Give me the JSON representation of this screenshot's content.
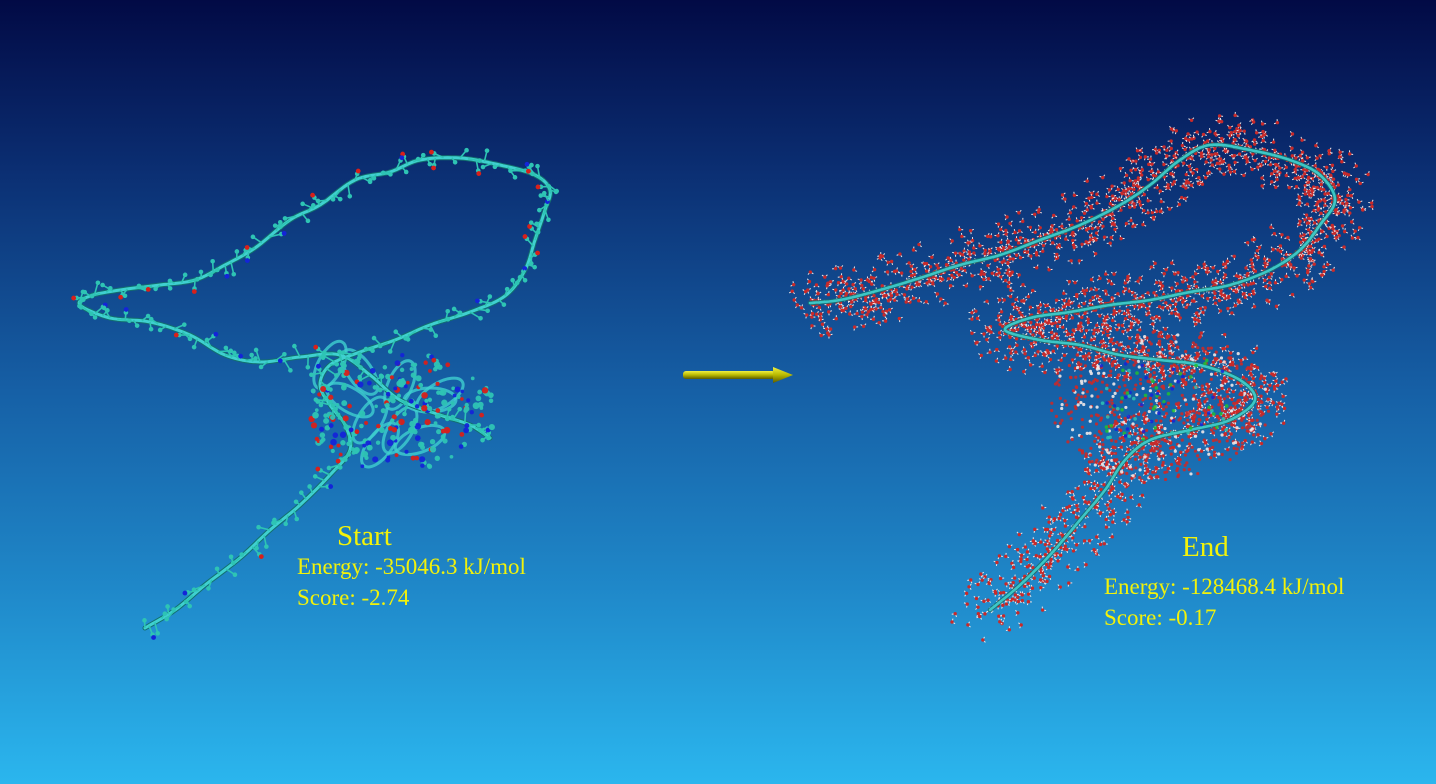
{
  "start": {
    "title": "Start",
    "energy": "Energy: -35046.3 kJ/mol",
    "score": "Score: -2.74"
  },
  "end": {
    "title": "End",
    "energy": "Energy: -128468.4 kJ/mol",
    "score": "Score: -0.17"
  },
  "colors": {
    "backbone": "#3fd0d0",
    "atom_carbon": "#2ec4b4",
    "atom_oxygen": "#d8201a",
    "atom_nitrogen": "#1424d8",
    "water": "#c82a2a",
    "water_h": "#f0e8e8",
    "arrow": "#b8b800",
    "label": "#f2f20a"
  }
}
